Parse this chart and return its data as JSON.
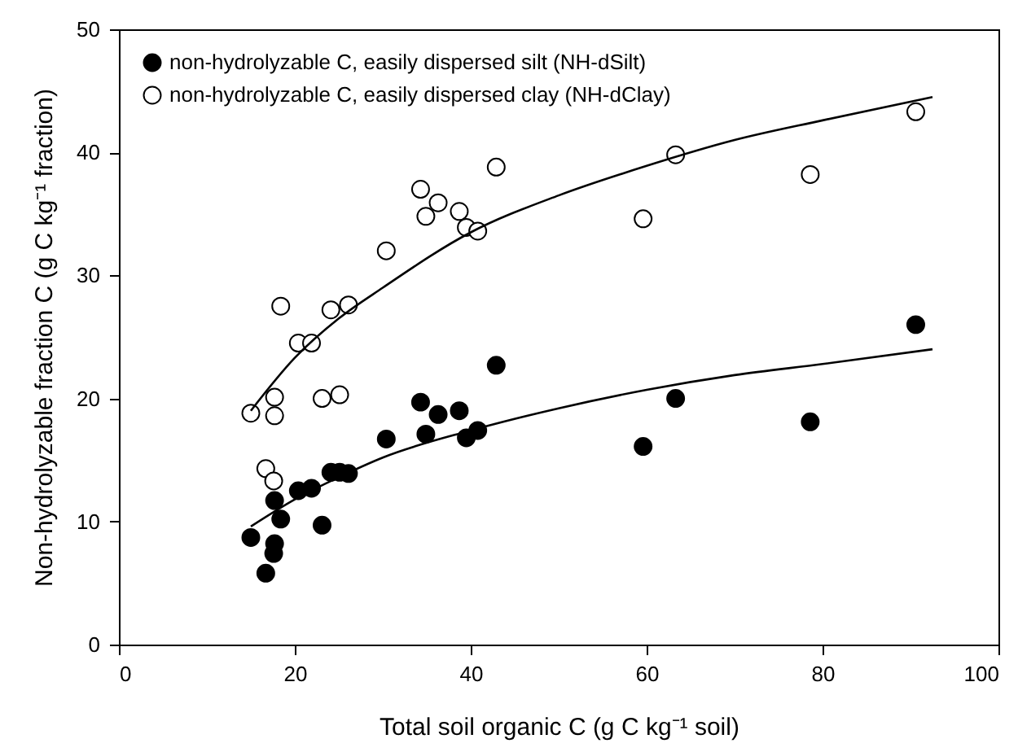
{
  "chart_data": {
    "type": "scatter",
    "xlabel": "Total soil organic C (g C kg⁻¹ soil)",
    "ylabel": "Non-hydrolyzable fraction C (g C kg⁻¹ fraction)",
    "xlim": [
      0,
      100
    ],
    "xticks": [
      0,
      20,
      40,
      60,
      80,
      100
    ],
    "ylim": [
      0,
      50
    ],
    "yticks": [
      0,
      10,
      20,
      30,
      40,
      50
    ],
    "grid": false,
    "legend": "top left",
    "marker": "circle",
    "series": [
      {
        "name": "non-hydrolyzable C, easily dispersed silt (NH-dSilt)",
        "color": "#000000",
        "x": [
          15.0,
          16.7,
          17.6,
          17.7,
          17.7,
          18.4,
          20.4,
          21.9,
          23.1,
          24.1,
          25.1,
          26.1,
          30.4,
          34.3,
          34.9,
          36.3,
          38.7,
          39.5,
          40.8,
          42.9,
          59.6,
          63.3,
          78.6,
          90.6
        ],
        "values": [
          8.7,
          5.8,
          7.4,
          8.2,
          11.7,
          10.2,
          12.5,
          12.7,
          9.7,
          14.0,
          14.0,
          13.9,
          16.7,
          19.7,
          17.1,
          18.7,
          19.0,
          16.8,
          17.4,
          22.7,
          16.1,
          20.0,
          18.1,
          26.0
        ]
      },
      {
        "name": "non-hydrolyzable C, easily dispersed clay (NH-dClay)",
        "color": "#ffffff",
        "x": [
          15.0,
          16.7,
          17.6,
          17.7,
          17.7,
          18.4,
          20.4,
          21.9,
          23.1,
          24.1,
          25.1,
          26.1,
          30.4,
          34.3,
          34.9,
          36.3,
          38.7,
          39.5,
          40.8,
          42.9,
          59.6,
          63.3,
          78.6,
          90.6
        ],
        "values": [
          18.8,
          14.3,
          13.3,
          20.1,
          18.6,
          27.5,
          24.5,
          24.5,
          20.0,
          27.2,
          20.3,
          27.6,
          32.0,
          37.0,
          34.8,
          35.9,
          35.2,
          33.9,
          33.6,
          38.8,
          34.6,
          39.8,
          38.2,
          43.3
        ]
      },
      {
        "type": "line",
        "color": "#000000",
        "line_style": "solid",
        "marker": "none",
        "x": [
          15,
          20,
          25,
          30,
          40,
          50,
          60,
          70,
          80,
          92.5
        ],
        "values": [
          9.6,
          11.8,
          13.6,
          15.2,
          17.4,
          19.2,
          20.7,
          21.9,
          22.8,
          24.0
        ]
      },
      {
        "type": "line",
        "color": "#000000",
        "line_style": "solid",
        "marker": "none",
        "x": [
          15,
          20,
          25,
          30,
          40,
          50,
          60,
          70,
          80,
          92.5
        ],
        "values": [
          19.0,
          23.3,
          26.5,
          29.0,
          33.5,
          36.5,
          38.9,
          41.0,
          42.6,
          44.5
        ]
      }
    ]
  }
}
